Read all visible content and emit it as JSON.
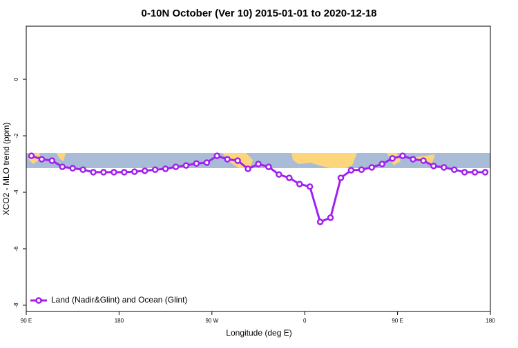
{
  "chart_data": {
    "type": "line",
    "title": "0-10N October (Ver 10)   2015-01-01 to 2020-12-18",
    "xlabel": "Longitude (deg E)",
    "ylabel": "XCO2 - MLO trend (ppm)",
    "xlim": [
      90,
      540
    ],
    "xticks": [
      {
        "value": 90,
        "label": "90 E"
      },
      180,
      {
        "value": 270,
        "label": "90 W"
      },
      {
        "value": 360,
        "label": "0"
      },
      {
        "value": 450,
        "label": "90 E"
      },
      {
        "value": 540,
        "label": "180"
      }
    ],
    "ylim": [
      -8.22,
      1.88
    ],
    "yticks": [
      0,
      -2,
      -4,
      -6,
      -8
    ],
    "legend": "bottom-left",
    "x": [
      95,
      105,
      115,
      125,
      135,
      145,
      155,
      165,
      175,
      185,
      195,
      205,
      215,
      225,
      235,
      245,
      255,
      265,
      275,
      285,
      295,
      305,
      315,
      325,
      335,
      345,
      355,
      365,
      375,
      385,
      395,
      405,
      415,
      425,
      435,
      445,
      455,
      465,
      475,
      485,
      495,
      505,
      515,
      525,
      535
    ],
    "series": [
      {
        "name": "Land (Nadir&Glint) and Ocean (Glint)",
        "color": "#a020f0",
        "values": [
          -2.71,
          -2.83,
          -2.88,
          -3.1,
          -3.15,
          -3.2,
          -3.29,
          -3.29,
          -3.29,
          -3.29,
          -3.27,
          -3.24,
          -3.2,
          -3.17,
          -3.1,
          -3.05,
          -2.98,
          -2.95,
          -2.71,
          -2.83,
          -2.88,
          -3.17,
          -3.0,
          -3.1,
          -3.37,
          -3.49,
          -3.71,
          -3.8,
          -5.05,
          -4.9,
          -3.49,
          -3.22,
          -3.2,
          -3.12,
          -3.0,
          -2.8,
          -2.71,
          -2.83,
          -2.88,
          -3.07,
          -3.12,
          -3.2,
          -3.29,
          -3.29,
          -3.29
        ]
      }
    ]
  }
}
